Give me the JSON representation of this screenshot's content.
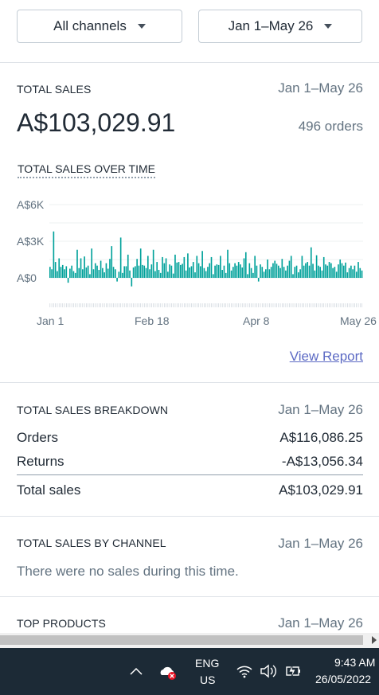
{
  "filters": {
    "channel_label": "All channels",
    "date_label": "Jan 1–May 26"
  },
  "total_sales": {
    "title": "TOTAL SALES",
    "date": "Jan 1–May 26",
    "amount": "A$103,029.91",
    "orders": "496 orders",
    "subtitle": "TOTAL SALES OVER TIME",
    "view_report": "View Report"
  },
  "chart_data": {
    "type": "bar",
    "title": "TOTAL SALES OVER TIME",
    "y_tick_labels": [
      "A$6K",
      "A$3K",
      "A$0"
    ],
    "y_ticks": [
      6000,
      3000,
      0
    ],
    "x_tick_labels": [
      "Jan 1",
      "Feb 18",
      "Apr 8",
      "May 26"
    ],
    "ylim": [
      -1200,
      6500
    ],
    "x_start": "2022-01-01",
    "x_end": "2022-05-26",
    "color": "#00a19a",
    "grid": true,
    "values": [
      900,
      700,
      3800,
      1300,
      550,
      1600,
      900,
      1050,
      700,
      950,
      -400,
      750,
      1000,
      550,
      400,
      2300,
      800,
      1600,
      700,
      1750,
      850,
      1000,
      300,
      2400,
      700,
      1200,
      1000,
      650,
      1400,
      800,
      450,
      1200,
      750,
      1550,
      2600,
      900,
      700,
      -300,
      500,
      3300,
      400,
      950,
      950,
      1900,
      600,
      -700,
      850,
      950,
      1550,
      1000,
      2400,
      1050,
      1000,
      800,
      1800,
      700,
      1100,
      2300,
      550,
      1300,
      650,
      400,
      1700,
      1200,
      1600,
      500,
      1100,
      1000,
      350,
      1900,
      1250,
      1300,
      1050,
      1150,
      1700,
      600,
      2000,
      850,
      950,
      1300,
      450,
      1800,
      1200,
      950,
      2200,
      800,
      550,
      900,
      1200,
      1700,
      300,
      1000,
      1100,
      1050,
      1800,
      650,
      1000,
      400,
      2300,
      1200,
      600,
      900,
      1200,
      1000,
      1300,
      1100,
      850,
      1600,
      2100,
      300,
      1200,
      800,
      400,
      1800,
      1000,
      -300,
      1100,
      900,
      500,
      700,
      1500,
      700,
      900,
      1200,
      1400,
      1150,
      1000,
      800,
      1550,
      900,
      600,
      1000,
      1400,
      1800,
      300,
      900,
      1000,
      450,
      700,
      1800,
      1000,
      1200,
      1300,
      1000,
      2500,
      1150,
      600,
      1850,
      1000,
      900,
      600,
      1700,
      1100,
      1000,
      1300,
      1200,
      800,
      900,
      500,
      1100,
      1500,
      1200,
      1000,
      1250,
      450,
      800,
      1000,
      700,
      1000,
      500,
      1300,
      800,
      600
    ]
  },
  "breakdown": {
    "title": "TOTAL SALES BREAKDOWN",
    "date": "Jan 1–May 26",
    "rows": [
      {
        "label": "Orders",
        "value": "A$116,086.25"
      },
      {
        "label": "Returns",
        "value": "-A$13,056.34"
      }
    ],
    "total_label": "Total sales",
    "total_value": "A$103,029.91"
  },
  "by_channel": {
    "title": "TOTAL SALES BY CHANNEL",
    "date": "Jan 1–May 26",
    "empty": "There were no sales during this time."
  },
  "top_products": {
    "title": "TOP PRODUCTS",
    "date": "Jan 1–May 26"
  },
  "taskbar": {
    "lang_top": "ENG",
    "lang_bottom": "US",
    "time": "9:43 AM",
    "date": "26/05/2022"
  }
}
